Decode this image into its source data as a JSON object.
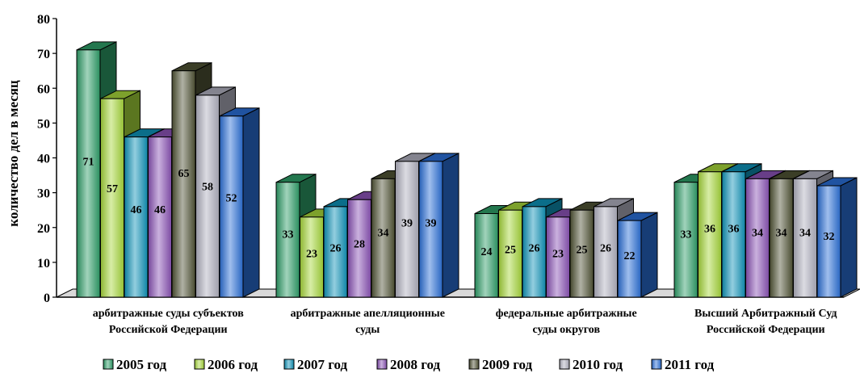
{
  "chart_data": {
    "type": "bar",
    "title": "",
    "xlabel": "",
    "ylabel": "количество дел в месяц",
    "ylim": [
      0,
      80
    ],
    "yticks": [
      "0",
      "10",
      "20",
      "30",
      "40",
      "50",
      "60",
      "70",
      "80"
    ],
    "grid": false,
    "legend_position": "bottom",
    "categories": [
      [
        "арбитражные суды субъектов",
        "Российской Федерации"
      ],
      [
        "арбитражные апелляционные",
        "суды"
      ],
      [
        "федеральные арбитражные",
        "суды округов"
      ],
      [
        "Высший Арбитражный Суд",
        "Российской Федерации"
      ]
    ],
    "series": [
      {
        "name": "2005 год",
        "values": [
          71,
          33,
          24,
          33
        ],
        "color": "#2e9e68"
      },
      {
        "name": "2006 год",
        "values": [
          57,
          23,
          25,
          36
        ],
        "color": "#a6d63a"
      },
      {
        "name": "2007 год",
        "values": [
          46,
          26,
          26,
          36
        ],
        "color": "#0e93b8"
      },
      {
        "name": "2008 год",
        "values": [
          46,
          28,
          23,
          34
        ],
        "color": "#8a52b5"
      },
      {
        "name": "2009 год",
        "values": [
          65,
          34,
          25,
          34
        ],
        "color": "#4f5234"
      },
      {
        "name": "2010 год",
        "values": [
          58,
          39,
          26,
          34
        ],
        "color": "#b0b0be"
      },
      {
        "name": "2011 год",
        "values": [
          52,
          39,
          22,
          32
        ],
        "color": "#2a6fd6"
      }
    ]
  }
}
